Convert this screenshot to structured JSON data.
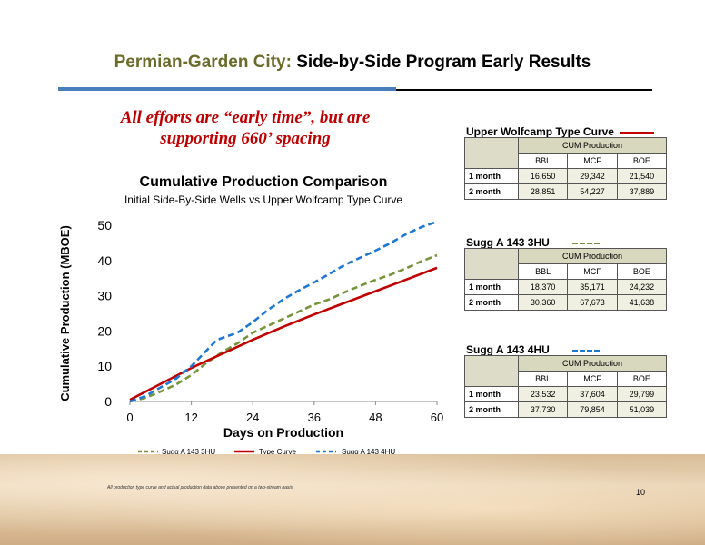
{
  "slide": {
    "title_prefix": "Permian-Garden City:",
    "title_rest": "Side-by-Side Program Early Results",
    "callout_line1": "All efforts are “early time”, but are",
    "callout_line2": "supporting 660’ spacing",
    "footnote": "All production type curve and actual production data above presented on a two-stream basis.",
    "page_number": "10"
  },
  "colors": {
    "title_prefix": "#6b6b2a",
    "callout": "#c00000",
    "blue_rule": "#4a7ebb"
  },
  "chart_data": {
    "type": "line",
    "title": "Cumulative Production Comparison",
    "subtitle": "Initial Side-By-Side Wells vs Upper Wolfcamp Type Curve",
    "xlabel": "Days on Production",
    "ylabel": "Cumulative Production (MBOE)",
    "xlim": [
      0,
      60
    ],
    "ylim": [
      0,
      50
    ],
    "xticks": [
      0,
      12,
      24,
      36,
      48,
      60
    ],
    "yticks": [
      0,
      10,
      20,
      30,
      40,
      50
    ],
    "grid": false,
    "legend_position": "bottom",
    "series": [
      {
        "name": "Sugg A 143 3HU",
        "color": "#77933c",
        "dash": "dashed",
        "x": [
          0,
          3,
          6,
          9,
          12,
          15,
          18,
          21,
          24,
          27,
          30,
          33,
          36,
          39,
          42,
          45,
          48,
          51,
          54,
          57,
          60
        ],
        "y": [
          0,
          1,
          2.8,
          4.8,
          7.5,
          11,
          14,
          16.5,
          19.5,
          21.5,
          23.5,
          25.5,
          27.5,
          29,
          31,
          32.8,
          34.5,
          36,
          37.8,
          39.8,
          41.5
        ]
      },
      {
        "name": "Type Curve",
        "color": "#c00000",
        "dash": "solid",
        "x": [
          0,
          6,
          12,
          18,
          24,
          30,
          36,
          42,
          48,
          54,
          60
        ],
        "y": [
          0.5,
          5,
          9.5,
          13.5,
          17.5,
          21.2,
          24.7,
          28,
          31.3,
          34.6,
          37.9
        ]
      },
      {
        "name": "Sugg A 143 4HU",
        "color": "#1f77d4",
        "dash": "dashed",
        "x": [
          0,
          3,
          6,
          9,
          12,
          15,
          17,
          19,
          21,
          24,
          27,
          30,
          33,
          36,
          39,
          42,
          45,
          48,
          51,
          54,
          57,
          60
        ],
        "y": [
          0,
          1.5,
          4,
          6.5,
          10,
          14.5,
          17.5,
          18.5,
          19.5,
          22.5,
          26,
          29,
          31.5,
          33.8,
          36.2,
          38.8,
          40.8,
          42.8,
          45,
          47.5,
          49.5,
          51
        ]
      }
    ]
  },
  "tables": [
    {
      "title": "Upper Wolfcamp Type Curve",
      "legend_color": "#c00000",
      "legend_dash": "solid",
      "group_header": "CUM Production",
      "columns": [
        "BBL",
        "MCF",
        "BOE"
      ],
      "rows": [
        {
          "label": "1 month",
          "values": [
            "16,650",
            "29,342",
            "21,540"
          ]
        },
        {
          "label": "2 month",
          "values": [
            "28,851",
            "54,227",
            "37,889"
          ]
        }
      ]
    },
    {
      "title": "Sugg A 143 3HU",
      "legend_color": "#77933c",
      "legend_dash": "dashed",
      "group_header": "CUM Production",
      "columns": [
        "BBL",
        "MCF",
        "BOE"
      ],
      "rows": [
        {
          "label": "1 month",
          "values": [
            "18,370",
            "35,171",
            "24,232"
          ]
        },
        {
          "label": "2 month",
          "values": [
            "30,360",
            "67,673",
            "41,638"
          ]
        }
      ]
    },
    {
      "title": "Sugg A 143 4HU",
      "legend_color": "#1f77d4",
      "legend_dash": "dashed",
      "group_header": "CUM Production",
      "columns": [
        "BBL",
        "MCF",
        "BOE"
      ],
      "rows": [
        {
          "label": "1 month",
          "values": [
            "23,532",
            "37,604",
            "29,799"
          ]
        },
        {
          "label": "2 month",
          "values": [
            "37,730",
            "79,854",
            "51,039"
          ]
        }
      ]
    }
  ]
}
